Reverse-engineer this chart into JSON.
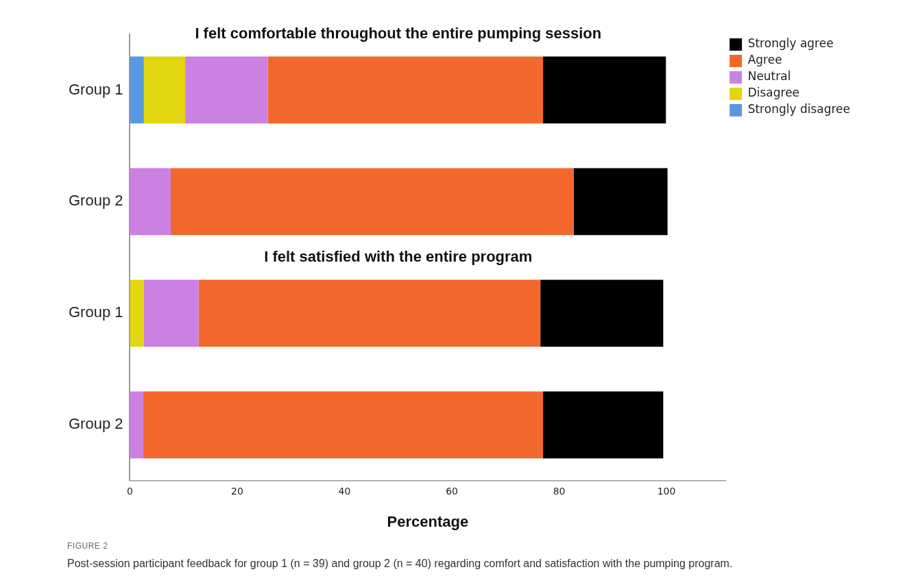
{
  "chart_data": {
    "type": "bar",
    "orientation": "horizontal",
    "stacked": true,
    "categories": [
      "Group 1",
      "Group 2",
      "Group 1",
      "Group 2"
    ],
    "series": [
      {
        "name": "Strongly disagree",
        "color": "#5898e2",
        "values": [
          2.6,
          null,
          null,
          null
        ]
      },
      {
        "name": "Disagree",
        "color": "#e2d610",
        "values": [
          7.7,
          null,
          2.6,
          null
        ]
      },
      {
        "name": "Neutral",
        "color": "#cb80e3",
        "values": [
          15.4,
          7.6,
          10.2,
          2.5
        ]
      },
      {
        "name": "Agree",
        "color": "#f2672c",
        "values": [
          51.3,
          75.1,
          63.7,
          74.5
        ]
      },
      {
        "name": "Strongly agree",
        "color": "#000000",
        "values": [
          22.9,
          17.5,
          22.9,
          22.4
        ]
      }
    ],
    "xlabel": "Percentage",
    "xlim": [
      0,
      111
    ],
    "xticks": [
      0,
      20,
      40,
      60,
      80,
      100
    ],
    "legend": "top right",
    "grid": false,
    "annotations": [
      "I felt comfortable throughout the entire pumping session",
      "I felt satisfied with the entire program",
      "FIGURE 2",
      "Post-session participant feedback for group 1 (n = 39) and group 2 (n = 40) regarding comfort and satisfaction with the pumping program."
    ]
  }
}
